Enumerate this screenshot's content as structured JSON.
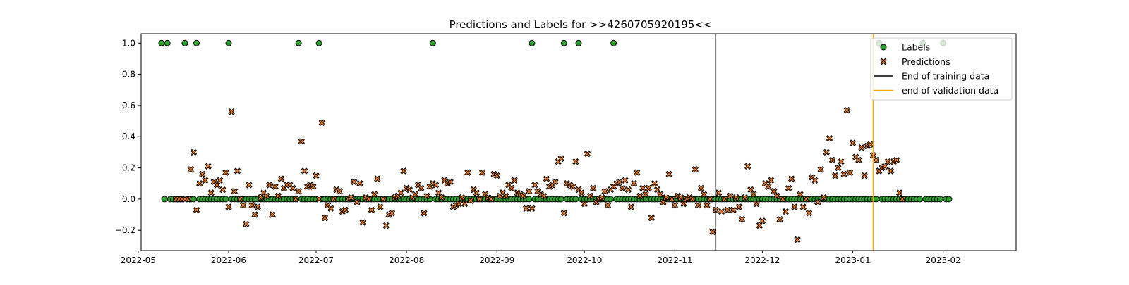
{
  "chart_data": {
    "type": "scatter",
    "title": "Predictions and Labels for >>4260705920195<<",
    "xlabel": "",
    "ylabel": "",
    "xlim": [
      "2022-05-02",
      "2023-02-26"
    ],
    "ylim": [
      -0.33,
      1.06
    ],
    "x_ticks": [
      "2022-05",
      "2022-06",
      "2022-07",
      "2022-08",
      "2022-09",
      "2022-10",
      "2022-11",
      "2022-12",
      "2023-01",
      "2023-02"
    ],
    "y_ticks": [
      -0.2,
      0.0,
      0.2,
      0.4,
      0.6,
      0.8,
      1.0
    ],
    "y_tick_labels": [
      "−0.2",
      "0.0",
      "0.2",
      "0.4",
      "0.6",
      "0.8",
      "1.0"
    ],
    "grid": false,
    "legend_position": "top-right",
    "legend": [
      {
        "label": "Labels",
        "kind": "circle",
        "color": "#2ca02c"
      },
      {
        "label": "Predictions",
        "kind": "x",
        "color": "#ff7f0e"
      },
      {
        "label": "End of training data",
        "kind": "line",
        "color": "#000000"
      },
      {
        "label": "end of validation data",
        "kind": "line",
        "color": "#ffa500"
      }
    ],
    "vlines": [
      {
        "name": "End of training data",
        "x": "2022-11-15",
        "color": "#000000"
      },
      {
        "name": "end of validation data",
        "x": "2023-01-08",
        "color": "#ffa500"
      }
    ],
    "label_series": {
      "name": "Labels",
      "color": "#2ca02c",
      "start": "2022-05-09",
      "end": "2023-02-03",
      "ones": [
        "2022-05-09",
        "2022-05-11",
        "2022-05-17",
        "2022-05-21",
        "2022-06-01",
        "2022-06-25",
        "2022-07-02",
        "2022-08-10",
        "2022-09-13",
        "2022-09-24",
        "2022-09-29",
        "2022-10-11",
        "2023-01-10",
        "2023-01-25",
        "2023-02-01"
      ],
      "default_value": 0
    },
    "prediction_series": {
      "name": "Predictions",
      "color": "#ff7f0e",
      "start": "2022-05-14",
      "values": [
        0.0,
        0.0,
        0.0,
        0.0,
        0.0,
        0.19,
        0.3,
        -0.07,
        0.1,
        0.16,
        0.12,
        0.21,
        0.04,
        0.11,
        0.09,
        0.12,
        0.06,
        0.17,
        -0.05,
        0.56,
        0.05,
        0.18,
        0.0,
        -0.04,
        -0.16,
        0.09,
        -0.04,
        -0.1,
        -0.05,
        0.01,
        0.04,
        0.02,
        0.09,
        -0.1,
        0.08,
        0.02,
        0.13,
        0.07,
        0.09,
        0.09,
        0.07,
        0.0,
        0.05,
        0.37,
        0.18,
        0.08,
        0.09,
        0.08,
        0.15,
        0.0,
        0.49,
        -0.12,
        -0.04,
        -0.06,
        0.0,
        0.06,
        0.05,
        -0.08,
        -0.07,
        0.0,
        0.01,
        0.11,
        -0.02,
        0.1,
        -0.15,
        0.01,
        0.0,
        -0.07,
        0.03,
        0.13,
        -0.05,
        0.0,
        -0.17,
        -0.1,
        -0.09,
        0.01,
        0.02,
        0.04,
        0.18,
        0.07,
        0.06,
        0.01,
        0.03,
        0.09,
        0.07,
        -0.09,
        0.02,
        0.08,
        0.1,
        0.09,
        0.04,
        0.01,
        0.12,
        0.1,
        0.11,
        -0.05,
        -0.04,
        -0.03,
        0.01,
        -0.03,
        0.17,
        -0.01,
        0.06,
        0.04,
        0.0,
        0.17,
        0.03,
        0.01,
        0.0,
        0.16,
        0.15,
        0.02,
        0.04,
        0.02,
        0.09,
        0.07,
        0.12,
        0.04,
        0.03,
        0.02,
        -0.06,
        0.05,
        -0.06,
        0.09,
        0.05,
        0.03,
        0.02,
        0.13,
        0.08,
        0.09,
        0.11,
        0.24,
        0.26,
        -0.09,
        0.1,
        0.09,
        0.08,
        0.24,
        0.06,
        0.04,
        -0.03,
        0.29,
        0.02,
        0.07,
        -0.02,
        0.0,
        0.01,
        0.05,
        -0.04,
        0.06,
        0.08,
        0.1,
        0.11,
        0.07,
        0.12,
        0.06,
        -0.05,
        0.1,
        0.17,
        0.02,
        0.07,
        0.03,
        0.07,
        -0.12,
        0.1,
        0.06,
        0.03,
        -0.02,
        0.01,
        0.16,
        0.0,
        -0.04,
        0.02,
        0.01,
        -0.03,
        0.0,
        0.01,
        0.0,
        0.19,
        -0.04,
        0.07,
        0.03,
        -0.04,
        0.0,
        -0.21,
        -0.07,
        0.04,
        -0.08,
        0.0,
        -0.07,
        0.02,
        -0.07,
        0.01,
        -0.05,
        -0.13,
        0.01,
        0.21,
        0.06,
        0.03,
        -0.03,
        -0.17,
        -0.14,
        0.1,
        0.08,
        0.12,
        0.05,
        0.02,
        -0.13,
        0.0,
        -0.08,
        0.07,
        0.13,
        -0.05,
        -0.26,
        0.03,
        -0.05,
        0.0,
        -0.09,
        0.14,
        0.12,
        -0.02,
        0.19,
        0.01,
        0.3,
        0.39,
        0.25,
        0.15,
        0.2,
        0.24,
        0.16,
        0.57,
        0.17,
        0.36,
        0.27,
        0.25,
        0.33,
        0.15,
        0.34,
        0.35,
        0.28,
        0.25,
        0.18,
        0.2,
        0.21,
        0.24,
        0.18,
        0.24,
        0.25,
        0.04,
        0.0
      ]
    }
  }
}
